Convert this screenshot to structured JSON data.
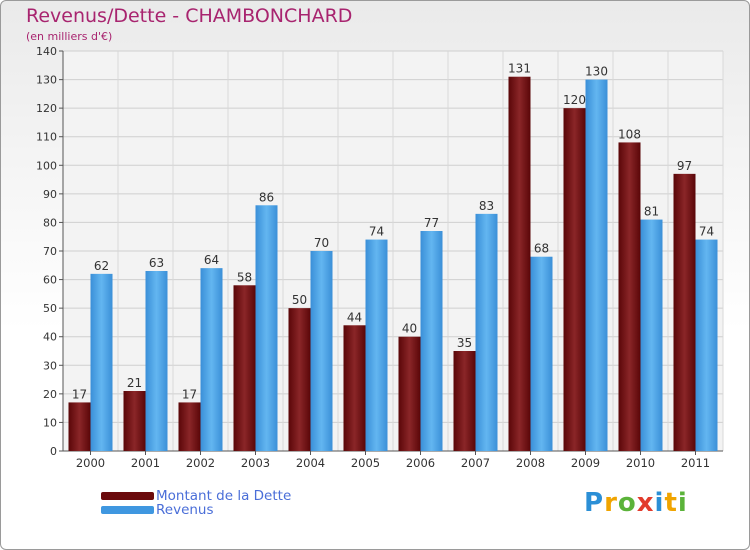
{
  "title": "Revenus/Dette - CHAMBONCHARD",
  "subtitle": "(en milliers d'€)",
  "colors": {
    "dette": "#7a1a1c",
    "revenus": "#4aa3e6",
    "title": "#a8246f",
    "legend_text": "#4a6ed8"
  },
  "legend": {
    "placement": "bottom-left",
    "items": [
      {
        "label": "Montant de la Dette",
        "color": "#6b0a0c"
      },
      {
        "label": "Revenus",
        "color": "#3f97e0"
      }
    ]
  },
  "logo": {
    "text": "Proxiti",
    "letters": [
      {
        "ch": "P",
        "color": "#2b8fd6"
      },
      {
        "ch": "r",
        "color": "#f0a400"
      },
      {
        "ch": "o",
        "color": "#5bb33a"
      },
      {
        "ch": "x",
        "color": "#e23b2c"
      },
      {
        "ch": "i",
        "color": "#2b8fd6"
      },
      {
        "ch": "t",
        "color": "#f0a400"
      },
      {
        "ch": "i",
        "color": "#5bb33a"
      }
    ]
  },
  "chart_data": {
    "type": "bar",
    "title": "Revenus/Dette - CHAMBONCHARD",
    "subtitle": "(en milliers d'€)",
    "categories": [
      "2000",
      "2001",
      "2002",
      "2003",
      "2004",
      "2005",
      "2006",
      "2007",
      "2008",
      "2009",
      "2010",
      "2011"
    ],
    "series": [
      {
        "name": "Montant de la Dette",
        "values": [
          17,
          21,
          17,
          58,
          50,
          44,
          40,
          35,
          131,
          120,
          108,
          97
        ]
      },
      {
        "name": "Revenus",
        "values": [
          62,
          63,
          64,
          86,
          70,
          74,
          77,
          83,
          68,
          130,
          81,
          74
        ]
      }
    ],
    "ylim": [
      0,
      140
    ],
    "yticks": [
      0,
      10,
      20,
      30,
      40,
      50,
      60,
      70,
      80,
      90,
      100,
      110,
      120,
      130,
      140
    ],
    "grid": true,
    "xlabel": "",
    "ylabel": ""
  }
}
